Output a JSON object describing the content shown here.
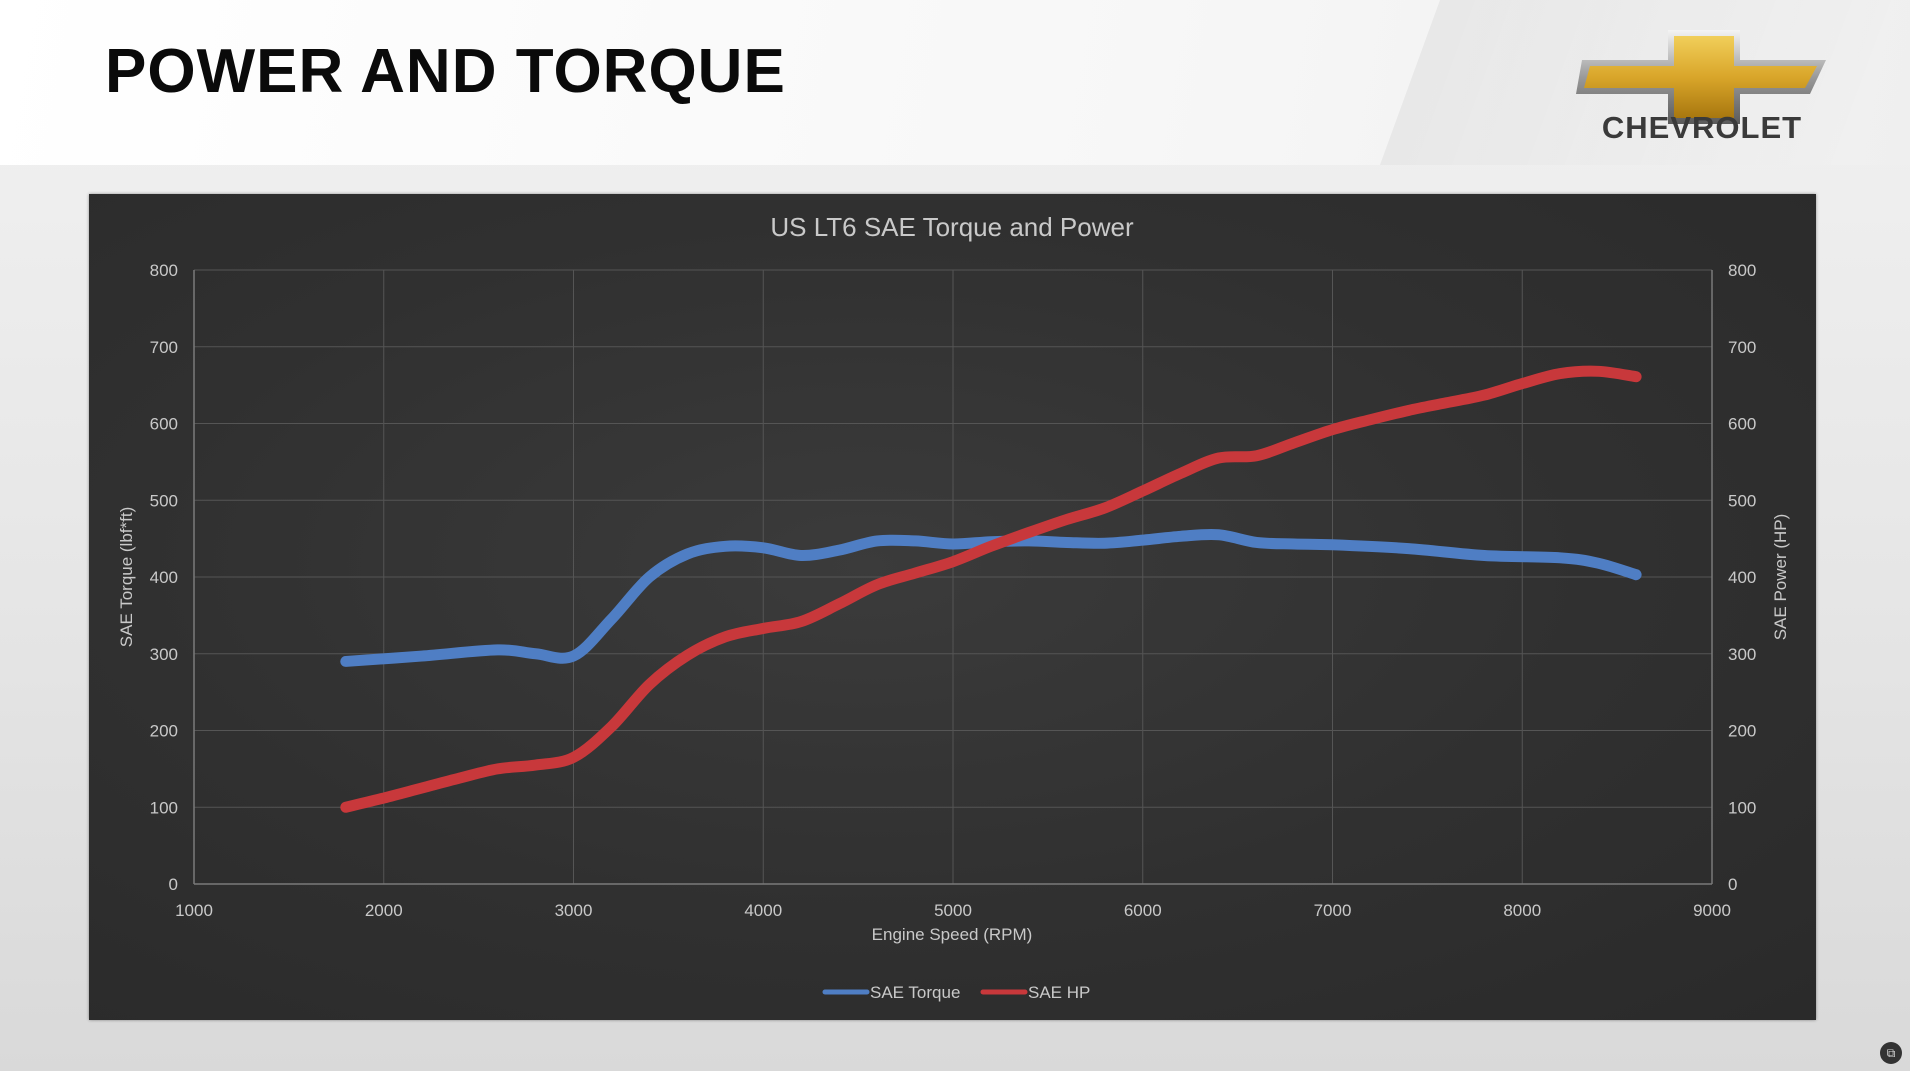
{
  "header": {
    "title": "POWER AND TORQUE",
    "brand": "CHEVROLET"
  },
  "colors": {
    "torque": "#4f7ec4",
    "hp": "#c8383b",
    "grid": "#555555",
    "panel": "#333333",
    "logo_gold": "#d9a62a"
  },
  "icons": {
    "logo": "chevrolet-bowtie-icon",
    "corner": "screen-capture-icon"
  },
  "chart_data": {
    "type": "line",
    "title": "US LT6 SAE Torque and Power",
    "xlabel": "Engine Speed (RPM)",
    "ylabel": "SAE Torque (lbf*ft)",
    "y2label": "SAE Power (HP)",
    "xlim": [
      1000,
      9000
    ],
    "ylim": [
      0,
      800
    ],
    "y2lim": [
      0,
      800
    ],
    "x_ticks": [
      "1000",
      "2000",
      "3000",
      "4000",
      "5000",
      "6000",
      "7000",
      "8000",
      "9000"
    ],
    "y_ticks": [
      "0",
      "100",
      "200",
      "300",
      "400",
      "500",
      "600",
      "700",
      "800"
    ],
    "y2_ticks": [
      "0",
      "100",
      "200",
      "300",
      "400",
      "500",
      "600",
      "700",
      "800"
    ],
    "grid": true,
    "legend_position": "bottom-center",
    "series": [
      {
        "name": "SAE Torque",
        "axis": "left",
        "x": [
          1800,
          2200,
          2600,
          2800,
          3000,
          3200,
          3400,
          3600,
          3800,
          4000,
          4200,
          4400,
          4600,
          4800,
          5000,
          5200,
          5400,
          5600,
          5800,
          6000,
          6200,
          6400,
          6600,
          6800,
          7000,
          7400,
          7800,
          8200,
          8400,
          8600
        ],
        "values": [
          290,
          297,
          305,
          300,
          297,
          345,
          400,
          430,
          440,
          438,
          428,
          435,
          447,
          447,
          443,
          446,
          447,
          445,
          444,
          448,
          453,
          455,
          445,
          443,
          442,
          437,
          428,
          425,
          418,
          403
        ]
      },
      {
        "name": "SAE HP",
        "axis": "right",
        "x": [
          1800,
          2000,
          2200,
          2400,
          2600,
          2800,
          3000,
          3200,
          3400,
          3600,
          3800,
          4000,
          4200,
          4400,
          4600,
          4800,
          5000,
          5200,
          5400,
          5600,
          5800,
          6000,
          6200,
          6400,
          6600,
          6800,
          7000,
          7200,
          7400,
          7600,
          7800,
          8000,
          8200,
          8400,
          8600
        ],
        "values": [
          100,
          112,
          125,
          138,
          150,
          155,
          165,
          205,
          260,
          298,
          322,
          333,
          342,
          365,
          390,
          405,
          420,
          440,
          458,
          475,
          490,
          512,
          535,
          555,
          558,
          575,
          592,
          605,
          617,
          627,
          637,
          652,
          665,
          668,
          661
        ]
      }
    ]
  }
}
